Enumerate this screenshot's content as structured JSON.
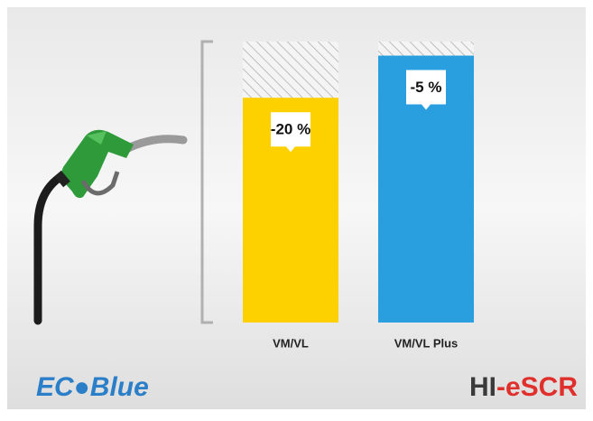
{
  "chart_data": {
    "type": "bar",
    "categories": [
      "VM/VL",
      "VM/VL Plus"
    ],
    "values": [
      -20,
      -5
    ],
    "value_labels": [
      "-20 %",
      "-5 %"
    ],
    "colors": [
      "#fdd000",
      "#2a9fdf"
    ],
    "ylim": [
      -100,
      0
    ]
  },
  "logos": {
    "left": "EC●Blue",
    "right_prefix": "HI",
    "right_suffix": "-eSCR"
  }
}
